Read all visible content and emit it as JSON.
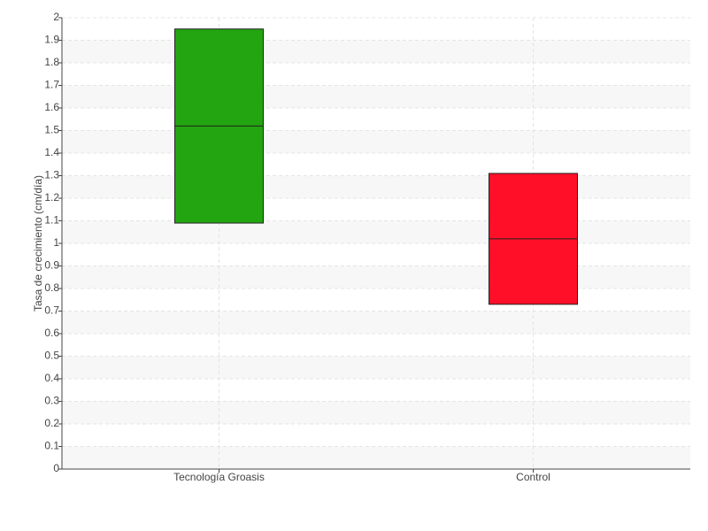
{
  "chart_data": {
    "type": "box",
    "y_label": "Tasa de crecimiento (cm/día)",
    "categories": [
      "Tecnología Groasis",
      "Control"
    ],
    "boxes": [
      {
        "q1": 1.09,
        "median": 1.52,
        "q3": 1.95,
        "color": "#22a511"
      },
      {
        "q1": 0.73,
        "median": 1.02,
        "q3": 1.31,
        "color": "#ff0f28"
      }
    ],
    "ylim": [
      0,
      2
    ],
    "yticks": [
      0,
      0.1,
      0.2,
      0.3,
      0.4,
      0.5,
      0.6,
      0.7,
      0.8,
      0.9,
      1,
      1.1,
      1.2,
      1.3,
      1.4,
      1.5,
      1.6,
      1.7,
      1.8,
      1.9,
      2
    ],
    "grid": true
  }
}
